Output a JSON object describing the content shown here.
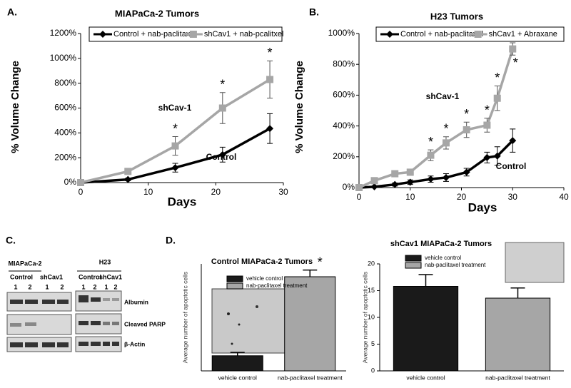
{
  "panel_labels": [
    "A.",
    "B.",
    "C.",
    "D."
  ],
  "chart_data": [
    {
      "type": "line",
      "title": "MIAPaCa-2 Tumors",
      "x_label": "Days",
      "y_label": "% Volume Change",
      "x": [
        0,
        7,
        14,
        21,
        28
      ],
      "xlim": [
        0,
        30
      ],
      "xticks": [
        0,
        10,
        20,
        30
      ],
      "ylim": [
        0,
        1200
      ],
      "yticks": [
        {
          "value": 0,
          "label": "0%"
        },
        {
          "value": 200,
          "label": "200%"
        },
        {
          "value": 400,
          "label": "400%"
        },
        {
          "value": 600,
          "label": "600%"
        },
        {
          "value": 800,
          "label": "800%"
        },
        {
          "value": 1000,
          "label": "1000%"
        },
        {
          "value": 1200,
          "label": "1200%"
        }
      ],
      "series": [
        {
          "name": "Control + nab-paclitaxel",
          "color": "#000000",
          "marker": "diamond",
          "values": [
            0,
            25,
            120,
            225,
            435
          ],
          "errors": [
            0,
            10,
            35,
            60,
            120
          ],
          "significance": [
            null,
            null,
            null,
            null,
            null
          ]
        },
        {
          "name": "shCav1 + nab-pcalitxel",
          "color": "#a6a6a6",
          "marker": "square",
          "values": [
            0,
            90,
            295,
            600,
            830
          ],
          "errors": [
            0,
            10,
            75,
            125,
            150
          ],
          "significance": [
            null,
            null,
            "*",
            "*",
            "*"
          ]
        }
      ],
      "annotations": [
        "shCav-1",
        "Control"
      ]
    },
    {
      "type": "line",
      "title": "H23 Tumors",
      "x_label": "Days",
      "y_label": "% Volume Change",
      "x": [
        0,
        3,
        7,
        10,
        14,
        17,
        21,
        25,
        27,
        30
      ],
      "xlim": [
        0,
        40
      ],
      "xticks": [
        0,
        10,
        20,
        30,
        40
      ],
      "ylim": [
        0,
        1000
      ],
      "yticks": [
        {
          "value": 0,
          "label": "0%"
        },
        {
          "value": 200,
          "label": "200%"
        },
        {
          "value": 400,
          "label": "400%"
        },
        {
          "value": 600,
          "label": "600%"
        },
        {
          "value": 800,
          "label": "800%"
        },
        {
          "value": 1000,
          "label": "1000%"
        }
      ],
      "series": [
        {
          "name": "Control + nab-paclitaxel",
          "color": "#000000",
          "marker": "diamond",
          "values": [
            0,
            5,
            20,
            35,
            55,
            65,
            100,
            195,
            205,
            305
          ],
          "errors": [
            0,
            5,
            10,
            15,
            20,
            25,
            25,
            35,
            60,
            75
          ],
          "significance": [
            null,
            null,
            null,
            null,
            null,
            null,
            null,
            null,
            null,
            null
          ]
        },
        {
          "name": "shCav1 + Abraxane",
          "color": "#a6a6a6",
          "marker": "square",
          "values": [
            0,
            45,
            90,
            100,
            210,
            290,
            375,
            405,
            580,
            900
          ],
          "errors": [
            0,
            10,
            15,
            20,
            35,
            40,
            50,
            45,
            80,
            40
          ],
          "significance": [
            null,
            null,
            null,
            null,
            "*",
            "*",
            "*",
            "*",
            "*",
            "*"
          ]
        }
      ],
      "annotations": [
        "shCav-1",
        "Control"
      ]
    },
    {
      "type": "bar",
      "title": "Control MIAPaCa-2 Tumors",
      "y_label": "Average number of apoptotic cells",
      "categories": [
        "vehicle control",
        "nab-paclitaxel treatment"
      ],
      "colors": [
        "#1a1a1a",
        "#a6a6a6"
      ],
      "values": [
        4.5,
        28
      ],
      "errors": [
        1,
        2
      ],
      "significance": [
        null,
        "*"
      ],
      "ylim": [
        0,
        35
      ]
    },
    {
      "type": "bar",
      "title": "shCav1 MIAPaCa-2 Tumors",
      "y_label": "Average number of apoptotic cells",
      "categories": [
        "vehicle control",
        "nab-paclitaxel treatment"
      ],
      "colors": [
        "#1a1a1a",
        "#a6a6a6"
      ],
      "values": [
        15.8,
        13.6
      ],
      "errors": [
        2.2,
        1.9
      ],
      "significance": [
        null,
        null
      ],
      "ylim": [
        0,
        20
      ],
      "yticks": [
        0,
        5,
        10,
        15,
        20
      ]
    }
  ],
  "blot": {
    "cell_lines": [
      "MIAPaCa-2",
      "H23"
    ],
    "groups": [
      "Control",
      "shCav1"
    ],
    "lanes": [
      "1",
      "2",
      "1",
      "2"
    ],
    "rows": [
      "Albumin",
      "Cleaved PARP",
      "β-Actin"
    ]
  }
}
